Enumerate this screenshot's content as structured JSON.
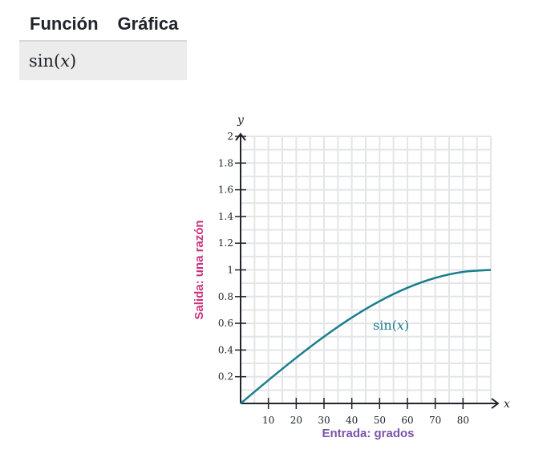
{
  "table": {
    "headers": [
      "Función",
      "Gráfica"
    ],
    "rows": [
      {
        "function": "sin(𝑥)"
      }
    ]
  },
  "chart_data": {
    "type": "line",
    "title": "",
    "xlabel": "Entrada: grados",
    "ylabel": "Salida: una razón",
    "x_axis_variable": "x",
    "y_axis_variable": "y",
    "xlim": [
      0,
      90
    ],
    "ylim": [
      0,
      2
    ],
    "x_ticks": [
      10,
      20,
      30,
      40,
      50,
      60,
      70,
      80
    ],
    "x_tick_labels": [
      "10",
      "20",
      "30",
      "40",
      "50",
      "60",
      "70",
      "80"
    ],
    "y_ticks": [
      0.2,
      0.4,
      0.6,
      0.8,
      1,
      1.2,
      1.4,
      1.6,
      1.8,
      2
    ],
    "y_tick_labels": [
      "0.2",
      "0.4",
      "0.6",
      "0.8",
      "1",
      "1.2",
      "1.4",
      "1.6",
      "1.8",
      "2"
    ],
    "grid": true,
    "series": [
      {
        "name": "sin(𝑥)",
        "color": "#1b7e8e",
        "x": [
          0,
          10,
          20,
          30,
          40,
          50,
          60,
          70,
          80,
          90
        ],
        "y": [
          0,
          0.174,
          0.342,
          0.5,
          0.643,
          0.766,
          0.866,
          0.94,
          0.985,
          1
        ]
      }
    ],
    "colors": {
      "xlabel": "#7854ab",
      "ylabel": "#ca337c",
      "grid": "#e4e5e7",
      "axis": "#21242c"
    }
  }
}
